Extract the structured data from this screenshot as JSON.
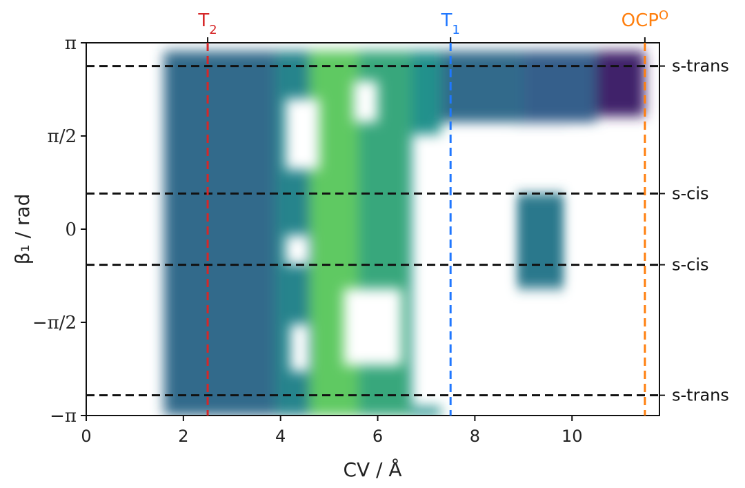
{
  "chart_data": {
    "type": "heatmap",
    "xlabel": "CV / Å",
    "ylabel": "β₁ / rad",
    "xlim": [
      0,
      11.8
    ],
    "ylim": [
      -3.1416,
      3.1416
    ],
    "x_ticks": [
      {
        "value": 0,
        "label": "0"
      },
      {
        "value": 2,
        "label": "2"
      },
      {
        "value": 4,
        "label": "4"
      },
      {
        "value": 6,
        "label": "6"
      },
      {
        "value": 8,
        "label": "8"
      },
      {
        "value": 10,
        "label": "10"
      }
    ],
    "y_ticks": [
      {
        "value": -3.1416,
        "label": "−π"
      },
      {
        "value": -1.5708,
        "label": "−π/2"
      },
      {
        "value": 0,
        "label": "0"
      },
      {
        "value": 1.5708,
        "label": "π/2"
      },
      {
        "value": 3.1416,
        "label": "π"
      }
    ],
    "colormap": [
      "#440154",
      "#3b528b",
      "#21918c",
      "#5ec962",
      "#fde725"
    ],
    "vertical_markers": [
      {
        "x": 2.5,
        "label": "T",
        "subscript": "2",
        "color": "#d62728"
      },
      {
        "x": 7.5,
        "label": "T",
        "subscript": "1",
        "color": "#1f77ff"
      },
      {
        "x": 11.5,
        "label": "OCP",
        "superscript": "O",
        "color": "#ff7f0e"
      }
    ],
    "horizontal_markers": [
      {
        "y": 2.75,
        "label": "s-trans"
      },
      {
        "y": 0.6,
        "label": "s-cis"
      },
      {
        "y": -0.6,
        "label": "s-cis"
      },
      {
        "y": -2.8,
        "label": "s-trans"
      }
    ],
    "regions": [
      {
        "x": [
          1.6,
          3.9
        ],
        "y": [
          -3.1416,
          3.0
        ],
        "level": 0.35
      },
      {
        "x": [
          3.9,
          4.6
        ],
        "y": [
          -3.1416,
          3.0
        ],
        "level": 0.45
      },
      {
        "x": [
          4.6,
          5.6
        ],
        "y": [
          -3.1416,
          3.0
        ],
        "level": 0.75
      },
      {
        "x": [
          5.6,
          6.7
        ],
        "y": [
          -3.1416,
          3.0
        ],
        "level": 0.6
      },
      {
        "x": [
          6.7,
          7.3
        ],
        "y": [
          -3.1416,
          3.0
        ],
        "level": 0.5
      },
      {
        "x": [
          7.3,
          9.0
        ],
        "y": [
          1.8,
          3.0
        ],
        "level": 0.35
      },
      {
        "x": [
          9.0,
          10.5
        ],
        "y": [
          1.8,
          3.0
        ],
        "level": 0.3
      },
      {
        "x": [
          8.8,
          9.9
        ],
        "y": [
          -1.0,
          0.6
        ],
        "level": 0.4
      },
      {
        "x": [
          10.5,
          11.5
        ],
        "y": [
          1.9,
          3.0
        ],
        "level": 0.1
      }
    ],
    "blank_regions": [
      {
        "x": [
          4.1,
          4.8
        ],
        "y": [
          1.0,
          2.2
        ]
      },
      {
        "x": [
          5.5,
          6.0
        ],
        "y": [
          1.8,
          2.5
        ]
      },
      {
        "x": [
          6.7,
          8.8
        ],
        "y": [
          -3.0,
          1.6
        ]
      },
      {
        "x": [
          9.9,
          11.6
        ],
        "y": [
          -3.0,
          1.6
        ]
      },
      {
        "x": [
          5.3,
          6.5
        ],
        "y": [
          -2.3,
          -1.0
        ]
      },
      {
        "x": [
          4.1,
          4.6
        ],
        "y": [
          -0.6,
          -0.1
        ]
      },
      {
        "x": [
          4.2,
          4.6
        ],
        "y": [
          -2.4,
          -1.6
        ]
      }
    ]
  }
}
